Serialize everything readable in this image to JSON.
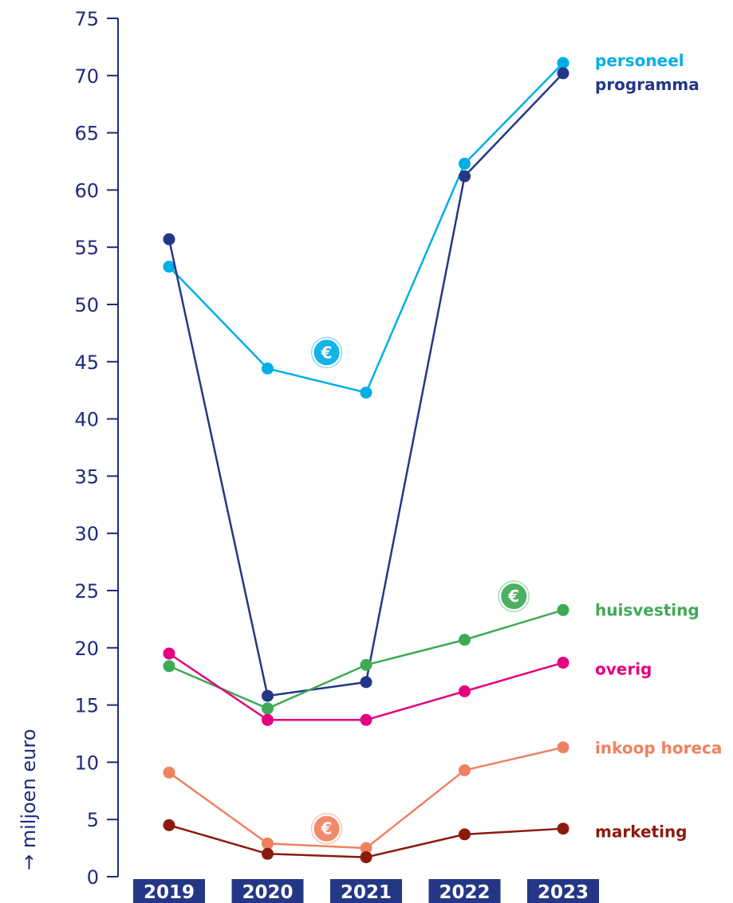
{
  "chart_data": {
    "type": "line",
    "categories": [
      "2019",
      "2020",
      "2021",
      "2022",
      "2023"
    ],
    "ylabel": "→ miljoen euro",
    "ylim": [
      0,
      75
    ],
    "yticks": [
      0,
      5,
      10,
      15,
      20,
      25,
      30,
      35,
      40,
      45,
      50,
      55,
      60,
      65,
      70,
      75
    ],
    "grid": false,
    "legend": "right, inline labels",
    "series": [
      {
        "name": "personeel",
        "color": "#00aee6",
        "values": [
          53.3,
          44.4,
          42.3,
          62.3,
          71.1
        ]
      },
      {
        "name": "programma",
        "color": "#243787",
        "values": [
          55.7,
          15.8,
          17.0,
          61.2,
          70.2
        ]
      },
      {
        "name": "huisvesting",
        "color": "#3daa55",
        "values": [
          18.4,
          14.7,
          18.5,
          20.7,
          23.3
        ]
      },
      {
        "name": "overig",
        "color": "#e4007f",
        "values": [
          19.5,
          13.7,
          13.7,
          16.2,
          18.7
        ]
      },
      {
        "name": "inkoop horeca",
        "color": "#ee8260",
        "values": [
          9.1,
          2.9,
          2.5,
          9.3,
          11.3
        ]
      },
      {
        "name": "marketing",
        "color": "#8b1a0d",
        "values": [
          4.5,
          2.0,
          1.7,
          3.7,
          4.2
        ]
      }
    ],
    "annotations": [
      {
        "icon": "euro-icon",
        "glyph": "€",
        "color": "#00aee6",
        "x": 2020.6,
        "y": 45.8
      },
      {
        "icon": "euro-icon",
        "glyph": "€",
        "color": "#3daa55",
        "x": 2022.5,
        "y": 24.5
      },
      {
        "icon": "euro-icon",
        "glyph": "€",
        "color": "#ee8260",
        "x": 2020.6,
        "y": 4.2
      }
    ]
  }
}
